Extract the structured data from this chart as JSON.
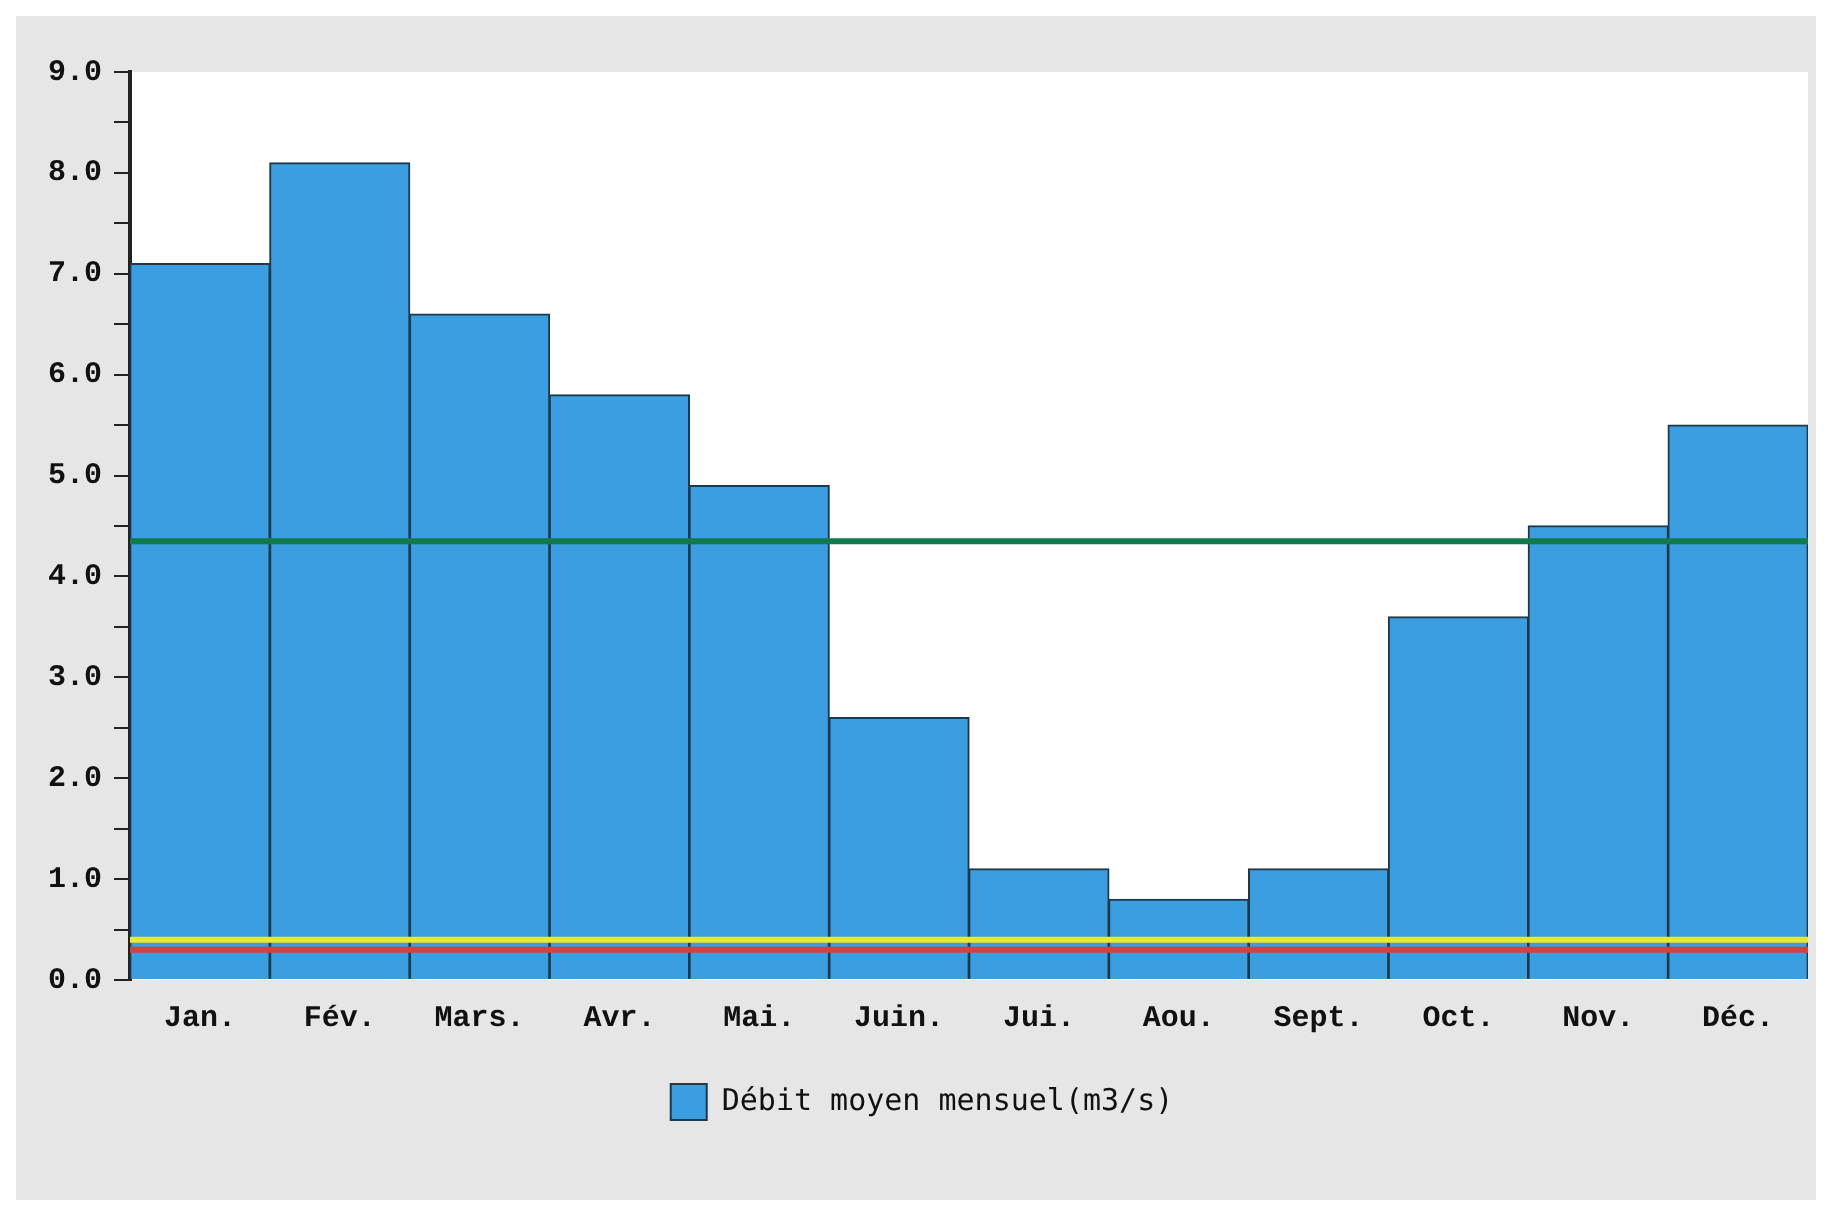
{
  "chart_data": {
    "type": "bar",
    "categories": [
      "Jan.",
      "Fév.",
      "Mars.",
      "Avr.",
      "Mai.",
      "Juin.",
      "Jui.",
      "Aou.",
      "Sept.",
      "Oct.",
      "Nov.",
      "Déc."
    ],
    "series": [
      {
        "name": "Débit moyen mensuel(m3/s)",
        "color": "#3a9ee0",
        "values": [
          7.1,
          8.1,
          6.6,
          5.8,
          4.9,
          2.6,
          1.1,
          0.8,
          1.1,
          3.6,
          4.5,
          5.5
        ]
      }
    ],
    "ylim": [
      0,
      9
    ],
    "yticks": [
      {
        "value": 0,
        "label": "0.0"
      },
      {
        "value": 0.5,
        "label": null
      },
      {
        "value": 1,
        "label": "1.0"
      },
      {
        "value": 1.5,
        "label": null
      },
      {
        "value": 2,
        "label": "2.0"
      },
      {
        "value": 2.5,
        "label": null
      },
      {
        "value": 3,
        "label": "3.0"
      },
      {
        "value": 3.5,
        "label": null
      },
      {
        "value": 4,
        "label": "4.0"
      },
      {
        "value": 4.5,
        "label": null
      },
      {
        "value": 5,
        "label": "5.0"
      },
      {
        "value": 5.5,
        "label": null
      },
      {
        "value": 6,
        "label": "6.0"
      },
      {
        "value": 6.5,
        "label": null
      },
      {
        "value": 7,
        "label": "7.0"
      },
      {
        "value": 7.5,
        "label": null
      },
      {
        "value": 8,
        "label": "8.0"
      },
      {
        "value": 8.5,
        "label": null
      },
      {
        "value": 9,
        "label": "9.0"
      }
    ],
    "ref_lines": [
      {
        "axis": "y",
        "value": 4.35,
        "color": "#107a4a"
      },
      {
        "axis": "y",
        "value": 0.4,
        "color": "#e8e830"
      },
      {
        "axis": "y",
        "value": 0.3,
        "color": "#d84040"
      }
    ],
    "grid": false,
    "legend": "bottom"
  }
}
